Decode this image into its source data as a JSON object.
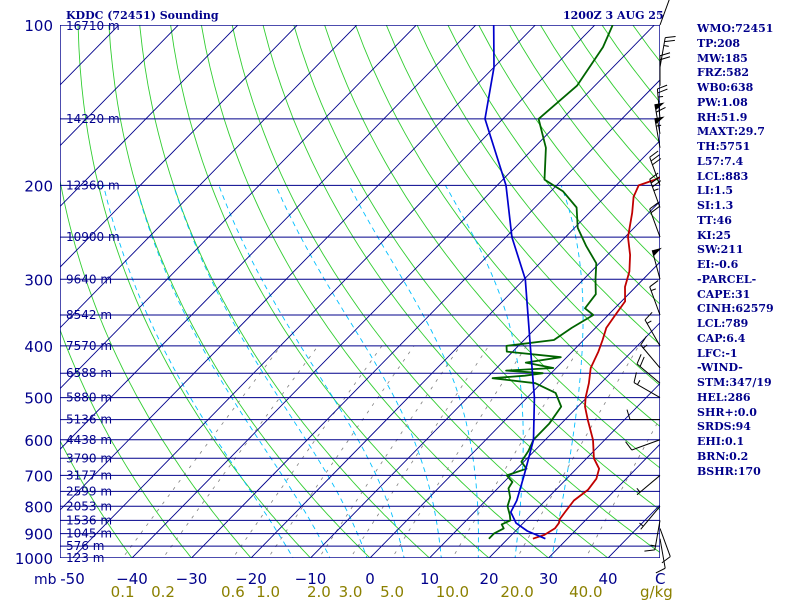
{
  "header": {
    "station": "KDDC (72451) Sounding",
    "time": "1200Z  3 AUG 25"
  },
  "indices": [
    "WMO:72451",
    "TP:208",
    "MW:185",
    "FRZ:582",
    "WB0:638",
    "PW:1.08",
    "RH:51.9",
    "MAXT:29.7",
    "TH:5751",
    "L57:7.4",
    "LCL:883",
    "LI:1.5",
    "SI:1.3",
    "TT:46",
    "KI:25",
    "SW:211",
    "EI:-0.6",
    "-PARCEL-",
    "CAPE:31",
    "CINH:62579",
    "LCL:789",
    "CAP:6.4",
    "LFC:-1",
    "-WIND-",
    "STM:347/19",
    "HEL:286",
    "SHR+:0.0",
    "SRDS:94",
    "EHI:0.1",
    "BRN:0.2",
    "BSHR:170"
  ],
  "colors": {
    "isobar": "#00008b",
    "isotherm": "#00008b",
    "dry_adiabat": "#32cd32",
    "moist_adiabat": "#00bfff",
    "mixing_ratio": "#808080",
    "temperature": "#c00000",
    "dewpoint": "#006400",
    "parcel": "#0000cd",
    "mixing_labels": "#8b8000",
    "wind_barb": "#000000"
  },
  "chart_data": {
    "type": "line",
    "title": "KDDC (72451) Sounding",
    "xlabel": "",
    "ylabel": "mb",
    "x_unit_right": "C",
    "mixing_unit": "g/kg",
    "xlim": [
      -50,
      50
    ],
    "ylim": [
      1000,
      100
    ],
    "y_scale": "log",
    "pressure_ticks": [
      100,
      200,
      300,
      400,
      500,
      600,
      700,
      800,
      900,
      1000
    ],
    "pressure_tick_labels": [
      "100",
      "200",
      "300",
      "400",
      "500",
      "600",
      "700",
      "800",
      "900",
      "1000"
    ],
    "temperature_ticks": [
      -50,
      -40,
      -30,
      -20,
      -10,
      0,
      10,
      20,
      30,
      40
    ],
    "temperature_tick_labels": [
      "-50",
      "−40",
      "−30",
      "−20",
      "−10",
      "0",
      "10",
      "20",
      "30",
      "40"
    ],
    "mixing_ratio_ticks": [
      0.1,
      0.2,
      0.6,
      1.0,
      2.0,
      3.0,
      5.0,
      10.0,
      20.0,
      40.0
    ],
    "mixing_ratio_labels": [
      "0.1",
      "0.2",
      "0.6",
      "1.0",
      "2.0",
      "3.0",
      "5.0",
      "10.0",
      "20.0",
      "40.0"
    ],
    "height_labels": [
      {
        "p": 100,
        "label": "16710 m"
      },
      {
        "p": 150,
        "label": "14220 m"
      },
      {
        "p": 200,
        "label": "12360 m"
      },
      {
        "p": 250,
        "label": "10900 m"
      },
      {
        "p": 300,
        "label": "9640 m"
      },
      {
        "p": 350,
        "label": "8542 m"
      },
      {
        "p": 400,
        "label": "7570 m"
      },
      {
        "p": 450,
        "label": "6588 m"
      },
      {
        "p": 500,
        "label": "5880 m"
      },
      {
        "p": 550,
        "label": "5136 m"
      },
      {
        "p": 600,
        "label": "4438 m"
      },
      {
        "p": 650,
        "label": "3790 m"
      },
      {
        "p": 700,
        "label": "3177 m"
      },
      {
        "p": 750,
        "label": "2599 m"
      },
      {
        "p": 800,
        "label": "2053 m"
      },
      {
        "p": 850,
        "label": "1536 m"
      },
      {
        "p": 900,
        "label": "1045 m"
      },
      {
        "p": 950,
        "label": "576 m"
      },
      {
        "p": 1000,
        "label": "123 m"
      }
    ],
    "series": [
      {
        "name": "temperature",
        "points": [
          [
            920,
            24.2
          ],
          [
            905,
            25.5
          ],
          [
            880,
            26.2
          ],
          [
            860,
            26.0
          ],
          [
            845,
            25.5
          ],
          [
            820,
            25.2
          ],
          [
            780,
            24.8
          ],
          [
            745,
            25.4
          ],
          [
            710,
            25.0
          ],
          [
            680,
            23.8
          ],
          [
            650,
            21.2
          ],
          [
            600,
            18.0
          ],
          [
            550,
            13.8
          ],
          [
            520,
            11.2
          ],
          [
            500,
            9.8
          ],
          [
            470,
            8.0
          ],
          [
            440,
            5.8
          ],
          [
            410,
            4.4
          ],
          [
            390,
            3.2
          ],
          [
            370,
            1.8
          ],
          [
            350,
            1.2
          ],
          [
            330,
            0.6
          ],
          [
            310,
            -1.8
          ],
          [
            290,
            -3.6
          ],
          [
            270,
            -6.2
          ],
          [
            250,
            -9.5
          ],
          [
            225,
            -12.8
          ],
          [
            210,
            -15.2
          ],
          [
            200,
            -16.2
          ],
          [
            195,
            -14.4
          ],
          [
            180,
            -11.2
          ],
          [
            160,
            -7.8
          ],
          [
            140,
            -3.8
          ],
          [
            120,
            0.4
          ],
          [
            100,
            4.3
          ]
        ]
      },
      {
        "name": "dewpoint",
        "points": [
          [
            920,
            16.8
          ],
          [
            900,
            16.8
          ],
          [
            880,
            17.6
          ],
          [
            865,
            16.6
          ],
          [
            850,
            17.4
          ],
          [
            830,
            16.4
          ],
          [
            800,
            14.6
          ],
          [
            770,
            13.6
          ],
          [
            740,
            11.8
          ],
          [
            720,
            11.4
          ],
          [
            700,
            9.4
          ],
          [
            680,
            11.6
          ],
          [
            660,
            9.6
          ],
          [
            630,
            9.0
          ],
          [
            600,
            8.0
          ],
          [
            560,
            8.0
          ],
          [
            520,
            7.2
          ],
          [
            490,
            4.0
          ],
          [
            470,
            -1.0
          ],
          [
            460,
            -9.0
          ],
          [
            455,
            -4.0
          ],
          [
            450,
            -1.4
          ],
          [
            445,
            -8.0
          ],
          [
            440,
            -0.5
          ],
          [
            430,
            -6.0
          ],
          [
            420,
            -1.0
          ],
          [
            410,
            -11.0
          ],
          [
            400,
            -12.0
          ],
          [
            390,
            -5.0
          ],
          [
            370,
            -4.0
          ],
          [
            350,
            -2.5
          ],
          [
            340,
            -5.0
          ],
          [
            320,
            -5.5
          ],
          [
            300,
            -8.0
          ],
          [
            280,
            -10.5
          ],
          [
            260,
            -15.0
          ],
          [
            240,
            -19.5
          ],
          [
            220,
            -23.0
          ],
          [
            205,
            -28.0
          ],
          [
            195,
            -33.0
          ],
          [
            170,
            -38.0
          ],
          [
            150,
            -44.0
          ],
          [
            130,
            -43.0
          ],
          [
            110,
            -45.0
          ],
          [
            100,
            -47.0
          ]
        ]
      },
      {
        "name": "parcel",
        "points": [
          [
            920,
            26.3
          ],
          [
            890,
            22.0
          ],
          [
            860,
            18.8
          ],
          [
            820,
            16.1
          ],
          [
            780,
            15.2
          ],
          [
            700,
            12.3
          ],
          [
            600,
            8.0
          ],
          [
            500,
            1.2
          ],
          [
            400,
            -8.0
          ],
          [
            300,
            -19.8
          ],
          [
            250,
            -29.0
          ],
          [
            200,
            -38.5
          ],
          [
            150,
            -53.0
          ],
          [
            120,
            -60.0
          ],
          [
            100,
            -67.0
          ]
        ]
      }
    ],
    "wind_barbs": [
      {
        "p": 920,
        "dir": 170,
        "speed": 10
      },
      {
        "p": 880,
        "dir": 160,
        "speed": 10
      },
      {
        "p": 850,
        "dir": 190,
        "speed": 15
      },
      {
        "p": 800,
        "dir": 220,
        "speed": 5
      },
      {
        "p": 700,
        "dir": 230,
        "speed": 5
      },
      {
        "p": 600,
        "dir": 250,
        "speed": 10
      },
      {
        "p": 550,
        "dir": 270,
        "speed": 10
      },
      {
        "p": 500,
        "dir": 300,
        "speed": 15
      },
      {
        "p": 470,
        "dir": 310,
        "speed": 20
      },
      {
        "p": 440,
        "dir": 320,
        "speed": 15
      },
      {
        "p": 400,
        "dir": 330,
        "speed": 15
      },
      {
        "p": 350,
        "dir": 340,
        "speed": 15
      },
      {
        "p": 300,
        "dir": 345,
        "speed": 50
      },
      {
        "p": 250,
        "dir": 340,
        "speed": 20
      },
      {
        "p": 220,
        "dir": 340,
        "speed": 35
      },
      {
        "p": 200,
        "dir": 340,
        "speed": 30
      },
      {
        "p": 170,
        "dir": 350,
        "speed": 55
      },
      {
        "p": 160,
        "dir": 350,
        "speed": 60
      },
      {
        "p": 150,
        "dir": 355,
        "speed": 25
      },
      {
        "p": 130,
        "dir": 360,
        "speed": 20
      },
      {
        "p": 120,
        "dir": 10,
        "speed": 25
      },
      {
        "p": 100,
        "dir": 20,
        "speed": 10
      }
    ]
  }
}
